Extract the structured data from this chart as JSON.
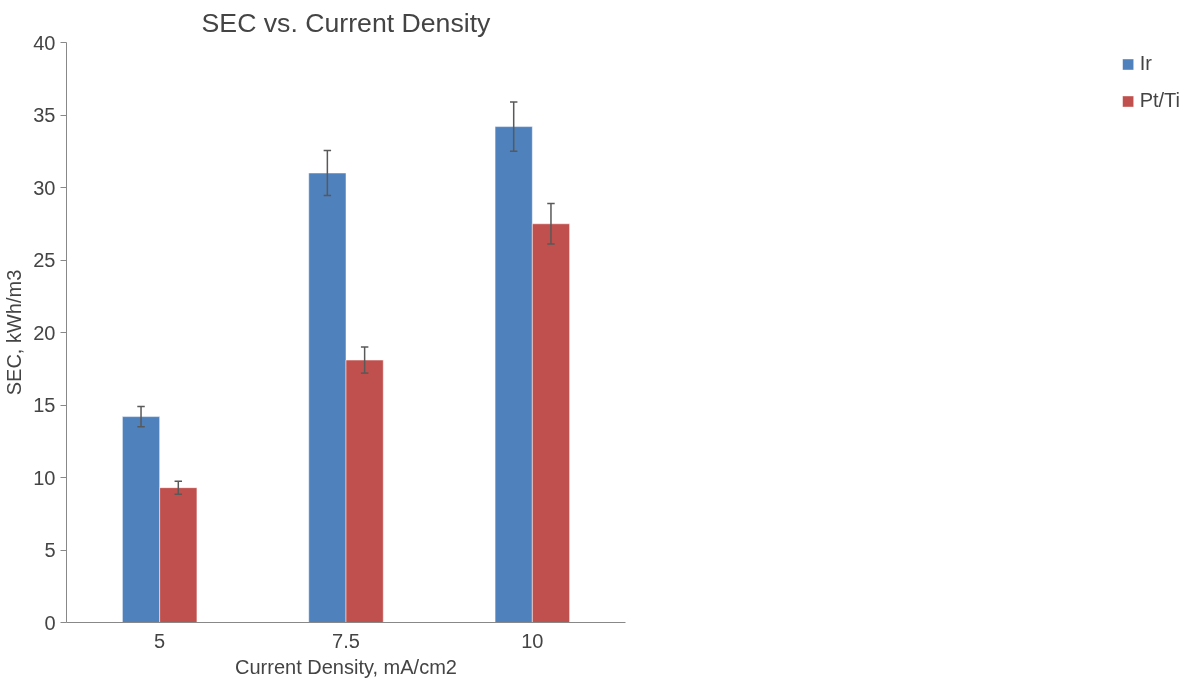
{
  "chart_data": {
    "type": "bar",
    "title": "SEC vs. Current Density",
    "xlabel": "Current Density, mA/cm2",
    "ylabel": "SEC, kWh/m3",
    "categories": [
      "5",
      "7.5",
      "10"
    ],
    "series": [
      {
        "name": "Ir",
        "color": "#4f81bd",
        "values": [
          14.2,
          31.0,
          34.2
        ],
        "errors": [
          0.7,
          1.55,
          1.7
        ]
      },
      {
        "name": "Pt/Ti",
        "color": "#c0504d",
        "values": [
          9.3,
          18.1,
          27.5
        ],
        "errors": [
          0.45,
          0.9,
          1.4
        ]
      }
    ],
    "ylim": [
      0,
      40
    ],
    "yticks": [
      0,
      5,
      10,
      15,
      20,
      25,
      30,
      35,
      40
    ],
    "grid": false,
    "legend": "right"
  }
}
